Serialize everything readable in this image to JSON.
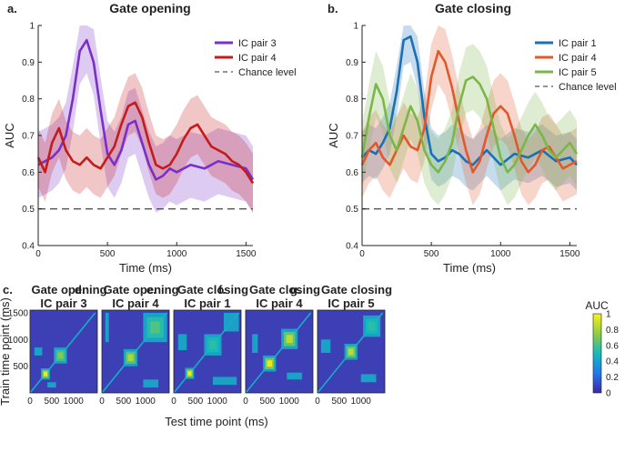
{
  "colors": {
    "purple": "#7a2fc8",
    "red": "#c41b1b",
    "blue": "#1a6fb5",
    "orange": "#e0592a",
    "green": "#7ab648",
    "chance": "#555555",
    "axis": "#222222",
    "heat_bg": "#3d3fb5"
  },
  "chart_data": [
    {
      "type": "line",
      "panel_label": "a.",
      "title": "Gate opening",
      "xlabel": "Time (ms)",
      "ylabel": "AUC",
      "xlim": [
        0,
        1550
      ],
      "ylim": [
        0.4,
        1.0
      ],
      "xticks": [
        0,
        500,
        1000,
        1500
      ],
      "xtick_labels": [
        "0",
        "500",
        "1000",
        "1500"
      ],
      "yticks": [
        0.4,
        0.5,
        0.6,
        0.7,
        0.8,
        0.9,
        1.0
      ],
      "ytick_labels": [
        "0.4",
        "0.5",
        "0.6",
        "0.7",
        "0.8",
        "0.9",
        "1"
      ],
      "chance_level": 0.5,
      "legend": "top-right",
      "series": [
        {
          "name": "IC pair 3",
          "color": "#7a2fc8",
          "x": [
            0,
            100,
            150,
            200,
            250,
            300,
            350,
            400,
            450,
            500,
            550,
            600,
            650,
            700,
            750,
            800,
            850,
            900,
            950,
            1000,
            1100,
            1200,
            1300,
            1400,
            1500,
            1550
          ],
          "y": [
            0.62,
            0.64,
            0.66,
            0.7,
            0.8,
            0.93,
            0.96,
            0.9,
            0.77,
            0.65,
            0.62,
            0.66,
            0.73,
            0.74,
            0.68,
            0.62,
            0.58,
            0.59,
            0.61,
            0.6,
            0.62,
            0.61,
            0.63,
            0.62,
            0.61,
            0.58
          ],
          "band": 0.09
        },
        {
          "name": "IC pair 4",
          "color": "#c41b1b",
          "x": [
            0,
            50,
            100,
            150,
            200,
            250,
            300,
            350,
            400,
            450,
            500,
            550,
            600,
            650,
            700,
            750,
            800,
            850,
            900,
            950,
            1000,
            1050,
            1100,
            1150,
            1200,
            1250,
            1300,
            1350,
            1400,
            1450,
            1500,
            1550
          ],
          "y": [
            0.64,
            0.6,
            0.68,
            0.72,
            0.66,
            0.63,
            0.62,
            0.64,
            0.62,
            0.61,
            0.64,
            0.67,
            0.73,
            0.78,
            0.79,
            0.75,
            0.68,
            0.62,
            0.61,
            0.62,
            0.65,
            0.69,
            0.72,
            0.73,
            0.7,
            0.67,
            0.66,
            0.65,
            0.63,
            0.62,
            0.6,
            0.57
          ],
          "band": 0.08
        },
        {
          "name": "Chance level",
          "style": "dashed"
        }
      ]
    },
    {
      "type": "line",
      "panel_label": "b.",
      "title": "Gate closing",
      "xlabel": "Time (ms)",
      "ylabel": "AUC",
      "xlim": [
        0,
        1550
      ],
      "ylim": [
        0.4,
        1.0
      ],
      "xticks": [
        0,
        500,
        1000,
        1500
      ],
      "xtick_labels": [
        "0",
        "500",
        "1000",
        "1500"
      ],
      "yticks": [
        0.4,
        0.5,
        0.6,
        0.7,
        0.8,
        0.9,
        1.0
      ],
      "ytick_labels": [
        "0.4",
        "0.5",
        "0.6",
        "0.7",
        "0.8",
        "0.9",
        "1"
      ],
      "chance_level": 0.5,
      "legend": "top-right",
      "series": [
        {
          "name": "IC pair 1",
          "color": "#1a6fb5",
          "x": [
            0,
            50,
            100,
            150,
            200,
            250,
            300,
            350,
            400,
            450,
            500,
            550,
            600,
            650,
            700,
            750,
            800,
            900,
            1000,
            1100,
            1200,
            1300,
            1400,
            1500,
            1550
          ],
          "y": [
            0.64,
            0.66,
            0.65,
            0.68,
            0.72,
            0.82,
            0.96,
            0.97,
            0.9,
            0.75,
            0.65,
            0.63,
            0.64,
            0.66,
            0.65,
            0.63,
            0.62,
            0.66,
            0.62,
            0.65,
            0.64,
            0.66,
            0.63,
            0.64,
            0.62
          ],
          "band": 0.07
        },
        {
          "name": "IC pair 4",
          "color": "#e0592a",
          "x": [
            0,
            50,
            100,
            150,
            200,
            250,
            300,
            350,
            400,
            450,
            500,
            550,
            600,
            650,
            700,
            750,
            800,
            850,
            900,
            950,
            1000,
            1050,
            1100,
            1150,
            1200,
            1250,
            1300,
            1350,
            1400,
            1450,
            1500,
            1550
          ],
          "y": [
            0.62,
            0.66,
            0.68,
            0.64,
            0.62,
            0.66,
            0.7,
            0.67,
            0.66,
            0.72,
            0.86,
            0.93,
            0.9,
            0.83,
            0.74,
            0.66,
            0.6,
            0.63,
            0.7,
            0.76,
            0.78,
            0.76,
            0.7,
            0.63,
            0.6,
            0.62,
            0.66,
            0.67,
            0.64,
            0.61,
            0.62,
            0.63
          ],
          "band": 0.09
        },
        {
          "name": "IC pair 5",
          "color": "#7ab648",
          "x": [
            0,
            50,
            100,
            150,
            200,
            250,
            300,
            350,
            400,
            450,
            500,
            550,
            600,
            650,
            700,
            750,
            800,
            850,
            900,
            950,
            1000,
            1050,
            1100,
            1150,
            1200,
            1250,
            1300,
            1350,
            1400,
            1450,
            1500,
            1550
          ],
          "y": [
            0.64,
            0.75,
            0.84,
            0.8,
            0.7,
            0.66,
            0.72,
            0.78,
            0.74,
            0.66,
            0.62,
            0.6,
            0.63,
            0.68,
            0.78,
            0.85,
            0.86,
            0.84,
            0.8,
            0.72,
            0.64,
            0.6,
            0.62,
            0.66,
            0.7,
            0.73,
            0.7,
            0.66,
            0.64,
            0.66,
            0.68,
            0.65
          ],
          "band": 0.09
        },
        {
          "name": "Chance level",
          "style": "dashed"
        }
      ]
    },
    {
      "type": "heatmap",
      "panel_label": "c.",
      "title": [
        "Gate opening",
        "IC pair 3"
      ],
      "xlabel": "Test time point (ms)",
      "ylabel": "Train time point (ms)",
      "xlim": [
        0,
        1550
      ],
      "ylim": [
        0,
        1550
      ],
      "xtick_labels": [
        "0",
        "500",
        "1000"
      ],
      "ytick_labels": [
        "500",
        "1000",
        "1500"
      ],
      "blocks": [
        {
          "x": [
            250,
            460
          ],
          "y": [
            250,
            460
          ],
          "peak": 0.97
        },
        {
          "x": [
            550,
            850
          ],
          "y": [
            550,
            850
          ],
          "peak": 0.72
        },
        {
          "x": [
            100,
            280
          ],
          "y": [
            700,
            850
          ],
          "peak": 0.45
        },
        {
          "x": [
            400,
            600
          ],
          "y": [
            100,
            200
          ],
          "peak": 0.42
        }
      ]
    },
    {
      "type": "heatmap",
      "panel_label": "d.",
      "title": [
        "Gate opening",
        "IC pair 4"
      ],
      "xlabel": "Test time point (ms)",
      "ylabel": "Train time point (ms)",
      "xlim": [
        0,
        1550
      ],
      "ylim": [
        0,
        1550
      ],
      "xtick_labels": [
        "0",
        "500",
        "1000"
      ],
      "blocks": [
        {
          "x": [
            500,
            820
          ],
          "y": [
            500,
            820
          ],
          "peak": 0.82
        },
        {
          "x": [
            950,
            1500
          ],
          "y": [
            950,
            1500
          ],
          "peak": 0.62
        },
        {
          "x": [
            80,
            160
          ],
          "y": [
            950,
            1500
          ],
          "peak": 0.42
        },
        {
          "x": [
            950,
            1300
          ],
          "y": [
            100,
            250
          ],
          "peak": 0.42
        }
      ]
    },
    {
      "type": "heatmap",
      "panel_label": "e.",
      "title": [
        "Gate closing",
        "IC pair 1"
      ],
      "xlabel": "Test time point (ms)",
      "ylabel": "Train time point (ms)",
      "xlim": [
        0,
        1550
      ],
      "ylim": [
        0,
        1550
      ],
      "xtick_labels": [
        "0",
        "500",
        "1000"
      ],
      "blocks": [
        {
          "x": [
            260,
            470
          ],
          "y": [
            260,
            470
          ],
          "peak": 0.97
        },
        {
          "x": [
            700,
            1100
          ],
          "y": [
            700,
            1100
          ],
          "peak": 0.55
        },
        {
          "x": [
            100,
            300
          ],
          "y": [
            800,
            1100
          ],
          "peak": 0.45
        },
        {
          "x": [
            900,
            1450
          ],
          "y": [
            150,
            300
          ],
          "peak": 0.45
        },
        {
          "x": [
            1150,
            1500
          ],
          "y": [
            1150,
            1500
          ],
          "peak": 0.45
        }
      ]
    },
    {
      "type": "heatmap",
      "panel_label": "f.",
      "title": [
        "Gate closing",
        "IC pair 4"
      ],
      "xlabel": "Test time point (ms)",
      "ylabel": "Train time point (ms)",
      "xlim": [
        0,
        1550
      ],
      "ylim": [
        0,
        1550
      ],
      "xtick_labels": [
        "0",
        "500",
        "1000"
      ],
      "blocks": [
        {
          "x": [
            400,
            700
          ],
          "y": [
            400,
            700
          ],
          "peak": 0.95
        },
        {
          "x": [
            820,
            1200
          ],
          "y": [
            820,
            1200
          ],
          "peak": 0.85
        },
        {
          "x": [
            150,
            280
          ],
          "y": [
            750,
            1100
          ],
          "peak": 0.45
        },
        {
          "x": [
            950,
            1300
          ],
          "y": [
            250,
            380
          ],
          "peak": 0.45
        }
      ]
    },
    {
      "type": "heatmap",
      "panel_label": "g.",
      "title": [
        "Gate closing",
        "IC pair 5"
      ],
      "xlabel": "Test time point (ms)",
      "ylabel": "Train time point (ms)",
      "xlim": [
        0,
        1550
      ],
      "ylim": [
        0,
        1550
      ],
      "xtick_labels": [
        "0",
        "500",
        "1000"
      ],
      "blocks": [
        {
          "x": [
            620,
            920
          ],
          "y": [
            620,
            920
          ],
          "peak": 0.85
        },
        {
          "x": [
            1050,
            1450
          ],
          "y": [
            1050,
            1450
          ],
          "peak": 0.55
        },
        {
          "x": [
            80,
            300
          ],
          "y": [
            750,
            1000
          ],
          "peak": 0.45
        },
        {
          "x": [
            1000,
            1350
          ],
          "y": [
            200,
            350
          ],
          "peak": 0.45
        }
      ]
    },
    {
      "type": "colorbar",
      "title": "AUC",
      "range": [
        0,
        1
      ],
      "ticks": [
        0,
        0.2,
        0.4,
        0.6,
        0.8,
        1.0
      ],
      "tick_labels": [
        "0",
        "0.2",
        "0.4",
        "0.6",
        "0.8",
        "1"
      ]
    }
  ]
}
